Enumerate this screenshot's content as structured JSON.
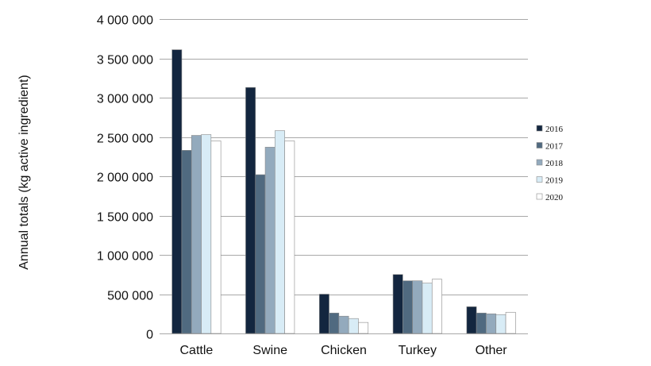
{
  "chart_data": {
    "type": "bar",
    "title": "",
    "xlabel": "",
    "ylabel": "Annual totals (kg active ingredient)",
    "ylim": [
      0,
      4000000
    ],
    "yticks": [
      0,
      500000,
      1000000,
      1500000,
      2000000,
      2500000,
      3000000,
      3500000,
      4000000
    ],
    "ytick_labels": [
      "0",
      "500 000",
      "1 000 000",
      "1 500 000",
      "2 000 000",
      "2 500 000",
      "3 000 000",
      "3 500 000",
      "4 000 000"
    ],
    "grid": true,
    "legend_position": "right",
    "categories": [
      "Cattle",
      "Swine",
      "Chicken",
      "Turkey",
      "Other"
    ],
    "series": [
      {
        "name": "2016",
        "color": "#13263f",
        "values": [
          3610000,
          3130000,
          500000,
          750000,
          340000
        ]
      },
      {
        "name": "2017",
        "color": "#506a80",
        "values": [
          2330000,
          2020000,
          260000,
          670000,
          260000
        ]
      },
      {
        "name": "2018",
        "color": "#93aabd",
        "values": [
          2520000,
          2370000,
          220000,
          670000,
          250000
        ]
      },
      {
        "name": "2019",
        "color": "#d8ecf6",
        "values": [
          2530000,
          2580000,
          190000,
          640000,
          240000
        ]
      },
      {
        "name": "2020",
        "color": "#ffffff",
        "values": [
          2450000,
          2450000,
          140000,
          690000,
          270000
        ]
      }
    ]
  }
}
